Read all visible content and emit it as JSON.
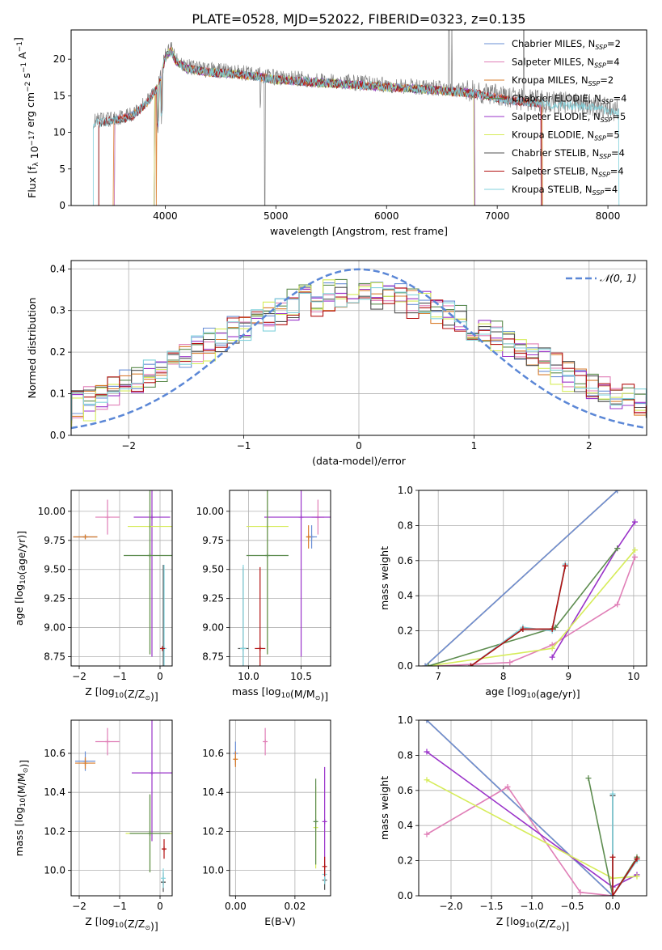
{
  "figure": {
    "title": "PLATE=0528, MJD=52022, FIBERID=0323, z=0.135"
  },
  "series_colors": {
    "Chabrier MILES": "#6a8fd6",
    "Salpeter MILES": "#e07fb7",
    "Kroupa MILES": "#d97d2c",
    "Chabrier ELODIE": "#5d8c4f",
    "Salpeter ELODIE": "#9a33c9",
    "Kroupa ELODIE": "#d6ec5a",
    "Chabrier STELIB": "#505050",
    "Salpeter STELIB": "#b31212",
    "Kroupa STELIB": "#82d2dc",
    "data": "#808080"
  },
  "chart_data": [
    {
      "id": "spectrum",
      "type": "line",
      "title": "PLATE=0528, MJD=52022, FIBERID=0323, z=0.135",
      "xlabel": "wavelength [Angstrom, rest frame]",
      "ylabel": "Flux [f_λ 10^-17 erg cm^-2 s^-1 A^-1]",
      "xlim": [
        3150,
        8350
      ],
      "ylim": [
        0,
        24
      ],
      "xticks": [
        4000,
        5000,
        6000,
        7000,
        8000
      ],
      "yticks": [
        0,
        5,
        10,
        15,
        20
      ],
      "legend_position": "top-right",
      "legend": [
        "Chabrier MILES, N_SSP=2",
        "Salpeter MILES, N_SSP=4",
        "Kroupa MILES, N_SSP=2",
        "Chabrier ELODIE, N_SSP=4",
        "Salpeter ELODIE, N_SSP=5",
        "Kroupa ELODIE, N_SSP=5",
        "Chabrier STELIB, N_SSP=4",
        "Salpeter STELIB, N_SSP=4",
        "Kroupa STELIB, N_SSP=4"
      ],
      "continuum": {
        "x": [
          3350,
          3500,
          3700,
          3850,
          3950,
          4000,
          4050,
          4100,
          4200,
          4400,
          4600,
          4800,
          5000,
          5200,
          5500,
          5800,
          6000,
          6300,
          6500,
          6800,
          7000,
          7200,
          7400,
          7600,
          7800,
          8000,
          8100
        ],
        "y": [
          11.5,
          11.8,
          12.5,
          14.5,
          17.0,
          20.5,
          21.5,
          20.0,
          19.0,
          18.5,
          18.3,
          18.0,
          17.5,
          17.3,
          17.0,
          16.7,
          16.5,
          16.2,
          16.0,
          15.6,
          15.0,
          14.5,
          14.2,
          14.0,
          13.8,
          13.2,
          13.0
        ]
      },
      "model_series": [
        {
          "name": "Chabrier MILES",
          "x_range": [
            3540,
            7400
          ],
          "dropouts": [
            3540,
            7400
          ]
        },
        {
          "name": "Salpeter MILES",
          "x_range": [
            3540,
            7400
          ],
          "dropouts": [
            3540,
            7400
          ]
        },
        {
          "name": "Kroupa MILES",
          "x_range": [
            3530,
            7410
          ],
          "dropouts": [
            3530,
            3920,
            7410
          ]
        },
        {
          "name": "Chabrier ELODIE",
          "x_range": [
            3900,
            6800
          ],
          "dropouts": [
            3900,
            6800
          ]
        },
        {
          "name": "Salpeter ELODIE",
          "x_range": [
            3900,
            6800
          ],
          "dropouts": [
            3900,
            6800
          ]
        },
        {
          "name": "Kroupa ELODIE",
          "x_range": [
            3900,
            6790
          ],
          "dropouts": [
            3900,
            6790
          ]
        },
        {
          "name": "Chabrier STELIB",
          "x_range": [
            3400,
            7400
          ],
          "dropouts": []
        },
        {
          "name": "Salpeter STELIB",
          "x_range": [
            3400,
            7400
          ],
          "dropouts": []
        },
        {
          "name": "Kroupa STELIB",
          "x_range": [
            3350,
            8100
          ],
          "dropouts": []
        }
      ]
    },
    {
      "id": "residuals",
      "type": "line",
      "xlabel": "(data-model)/error",
      "ylabel": "Normed distribution",
      "xlim": [
        -2.5,
        2.5
      ],
      "ylim": [
        0,
        0.42
      ],
      "xticks": [
        -2,
        -1,
        0,
        1,
        2
      ],
      "yticks": [
        0.0,
        0.1,
        0.2,
        0.3,
        0.4
      ],
      "legend_position": "top-right",
      "legend": [
        "𝒩(0, 1)"
      ],
      "gaussian": {
        "mean": 0,
        "sigma": 1
      },
      "step_histograms": [
        {
          "name": "Chabrier MILES",
          "bins": 50,
          "peak": 0.34,
          "width": 1.45
        },
        {
          "name": "Salpeter MILES",
          "bins": 50,
          "peak": 0.34,
          "width": 1.4
        },
        {
          "name": "Kroupa MILES",
          "bins": 50,
          "peak": 0.33,
          "width": 1.45
        },
        {
          "name": "Chabrier ELODIE",
          "bins": 50,
          "peak": 0.35,
          "width": 1.38
        },
        {
          "name": "Salpeter ELODIE",
          "bins": 50,
          "peak": 0.34,
          "width": 1.35
        },
        {
          "name": "Kroupa ELODIE",
          "bins": 50,
          "peak": 0.35,
          "width": 1.3
        },
        {
          "name": "Chabrier STELIB",
          "bins": 50,
          "peak": 0.33,
          "width": 1.45
        },
        {
          "name": "Salpeter STELIB",
          "bins": 50,
          "peak": 0.33,
          "width": 1.45
        },
        {
          "name": "Kroupa STELIB",
          "bins": 50,
          "peak": 0.33,
          "width": 1.45
        }
      ]
    },
    {
      "id": "age-vs-Z",
      "type": "scatter",
      "xlabel": "Z [log10(Z/Z☉)]",
      "ylabel": "age  [log10(age/yr)]",
      "xlim": [
        -2.2,
        0.3
      ],
      "ylim": [
        8.67,
        10.18
      ],
      "xticks": [
        -2,
        -1,
        0
      ],
      "yticks": [
        8.75,
        9.0,
        9.25,
        9.5,
        9.75,
        10.0
      ],
      "points": [
        {
          "series": "Chabrier MILES",
          "x": -1.85,
          "y": 9.78,
          "xerr": 0.3,
          "yerr": 0.0
        },
        {
          "series": "Kroupa MILES",
          "x": -1.85,
          "y": 9.78,
          "xerr": 0.3,
          "yerr": 0.0
        },
        {
          "series": "Salpeter MILES",
          "x": -1.3,
          "y": 9.95,
          "xerr": 0.3,
          "yerr": 0.15
        },
        {
          "series": "Salpeter ELODIE",
          "x": -0.2,
          "y": 9.95,
          "xerr": 0.45,
          "yerr": 1.2
        },
        {
          "series": "Kroupa ELODIE",
          "x": -0.25,
          "y": 9.87,
          "xerr": 0.55,
          "yerr": 1.1
        },
        {
          "series": "Chabrier ELODIE",
          "x": -0.25,
          "y": 9.62,
          "xerr": 0.65,
          "yerr": 0.85
        },
        {
          "series": "Chabrier STELIB",
          "x": 0.08,
          "y": 8.82,
          "xerr": 0.04,
          "yerr": 0.72
        },
        {
          "series": "Kroupa STELIB",
          "x": 0.1,
          "y": 8.82,
          "xerr": 0.02,
          "yerr": 0.72
        },
        {
          "series": "Salpeter STELIB",
          "x": 0.06,
          "y": 8.82,
          "xerr": 0.02,
          "yerr": 0.0
        }
      ]
    },
    {
      "id": "age-vs-mass",
      "type": "scatter",
      "xlabel": "mass [log10(M/M☉)]",
      "ylabel": "",
      "xlim": [
        9.82,
        10.78
      ],
      "ylim": [
        8.67,
        10.18
      ],
      "xticks": [
        10.0,
        10.5
      ],
      "yticks": [
        8.75,
        9.0,
        9.25,
        9.5,
        9.75,
        10.0
      ],
      "points": [
        {
          "series": "Chabrier MILES",
          "x": 10.6,
          "y": 9.78,
          "xerr": 0.05,
          "yerr": 0.1
        },
        {
          "series": "Kroupa MILES",
          "x": 10.57,
          "y": 9.78,
          "xerr": 0.02,
          "yerr": 0.1
        },
        {
          "series": "Salpeter MILES",
          "x": 10.66,
          "y": 9.95,
          "xerr": 0.06,
          "yerr": 0.15
        },
        {
          "series": "Salpeter ELODIE",
          "x": 10.5,
          "y": 9.95,
          "xerr": 0.35,
          "yerr": 1.2
        },
        {
          "series": "Kroupa ELODIE",
          "x": 10.18,
          "y": 9.87,
          "xerr": 0.2,
          "yerr": 1.1
        },
        {
          "series": "Chabrier ELODIE",
          "x": 10.18,
          "y": 9.62,
          "xerr": 0.2,
          "yerr": 0.85
        },
        {
          "series": "Chabrier STELIB",
          "x": 9.95,
          "y": 8.82,
          "xerr": 0.05,
          "yerr": 0.7
        },
        {
          "series": "Kroupa STELIB",
          "x": 9.95,
          "y": 8.82,
          "xerr": 0.03,
          "yerr": 0.72
        },
        {
          "series": "Salpeter STELIB",
          "x": 10.11,
          "y": 8.82,
          "xerr": 0.05,
          "yerr": 0.7
        }
      ]
    },
    {
      "id": "mass-weight-vs-age",
      "type": "line",
      "xlabel": "age  [log10(age/yr)]",
      "ylabel": "mass weight",
      "xlim": [
        6.7,
        10.2
      ],
      "ylim": [
        0,
        1
      ],
      "xticks": [
        7,
        8,
        9,
        10
      ],
      "yticks": [
        0.0,
        0.2,
        0.4,
        0.6,
        0.8,
        1.0
      ],
      "series": [
        {
          "name": "Kroupa MILES",
          "x": [
            6.8,
            9.75
          ],
          "y": [
            0.0,
            1.0
          ]
        },
        {
          "name": "Chabrier MILES",
          "x": [
            6.8,
            9.75
          ],
          "y": [
            0.0,
            1.0
          ]
        },
        {
          "name": "Salpeter MILES",
          "x": [
            7.0,
            8.1,
            8.75,
            9.75,
            10.02
          ],
          "y": [
            0.0,
            0.02,
            0.12,
            0.35,
            0.62
          ]
        },
        {
          "name": "Salpeter ELODIE",
          "x": [
            8.75,
            9.75,
            10.02
          ],
          "y": [
            0.05,
            0.67,
            0.82
          ]
        },
        {
          "name": "Kroupa ELODIE",
          "x": [
            6.85,
            8.75,
            10.02
          ],
          "y": [
            0.0,
            0.1,
            0.66
          ]
        },
        {
          "name": "Chabrier ELODIE",
          "x": [
            6.85,
            8.8,
            9.75
          ],
          "y": [
            0.0,
            0.22,
            0.67
          ]
        },
        {
          "name": "Chabrier STELIB",
          "x": [
            7.5,
            8.3,
            8.75,
            8.95
          ],
          "y": [
            0.0,
            0.21,
            0.21,
            0.57
          ]
        },
        {
          "name": "Kroupa STELIB",
          "x": [
            7.5,
            8.3,
            8.75,
            8.95
          ],
          "y": [
            0.0,
            0.22,
            0.2,
            0.58
          ]
        },
        {
          "name": "Salpeter STELIB",
          "x": [
            7.5,
            8.3,
            8.75,
            8.95
          ],
          "y": [
            0.0,
            0.21,
            0.21,
            0.57
          ]
        }
      ]
    },
    {
      "id": "mass-vs-Z",
      "type": "scatter",
      "xlabel": "Z [log10(Z/Z☉)]",
      "ylabel": "mass [log10(M/M☉)]",
      "xlim": [
        -2.2,
        0.3
      ],
      "ylim": [
        9.87,
        10.77
      ],
      "xticks": [
        -2,
        -1,
        0
      ],
      "yticks": [
        10.0,
        10.2,
        10.4,
        10.6
      ],
      "points": [
        {
          "series": "Chabrier MILES",
          "x": -1.85,
          "y": 10.56,
          "xerr": 0.25,
          "yerr": 0.05
        },
        {
          "series": "Kroupa MILES",
          "x": -1.85,
          "y": 10.55,
          "xerr": 0.25,
          "yerr": 0.03
        },
        {
          "series": "Salpeter MILES",
          "x": -1.3,
          "y": 10.66,
          "xerr": 0.3,
          "yerr": 0.07
        },
        {
          "series": "Salpeter ELODIE",
          "x": -0.2,
          "y": 10.5,
          "xerr": 0.5,
          "yerr": 0.35
        },
        {
          "series": "Kroupa ELODIE",
          "x": -0.25,
          "y": 10.19,
          "xerr": 0.6,
          "yerr": 0.2
        },
        {
          "series": "Chabrier ELODIE",
          "x": -0.25,
          "y": 10.19,
          "xerr": 0.5,
          "yerr": 0.2
        },
        {
          "series": "Chabrier STELIB",
          "x": 0.08,
          "y": 9.94,
          "xerr": 0.05,
          "yerr": 0.05
        },
        {
          "series": "Kroupa STELIB",
          "x": 0.08,
          "y": 9.96,
          "xerr": 0.03,
          "yerr": 0.05
        },
        {
          "series": "Salpeter STELIB",
          "x": 0.1,
          "y": 10.11,
          "xerr": 0.03,
          "yerr": 0.05
        }
      ]
    },
    {
      "id": "mass-vs-EBV",
      "type": "scatter",
      "xlabel": "E(B-V)",
      "ylabel": "",
      "xlim": [
        -0.002,
        0.032
      ],
      "ylim": [
        9.87,
        10.77
      ],
      "xticks": [
        0.0,
        0.02
      ],
      "yticks": [
        10.0,
        10.2,
        10.4,
        10.6
      ],
      "points": [
        {
          "series": "Chabrier MILES",
          "x": 0.0,
          "y": 10.6,
          "xerr": 0,
          "yerr": 0.06
        },
        {
          "series": "Kroupa MILES",
          "x": 0.0,
          "y": 10.57,
          "xerr": 0,
          "yerr": 0.04
        },
        {
          "series": "Salpeter MILES",
          "x": 0.01,
          "y": 10.66,
          "xerr": 0,
          "yerr": 0.07
        },
        {
          "series": "Salpeter ELODIE",
          "x": 0.03,
          "y": 10.25,
          "xerr": 0,
          "yerr": 0.28
        },
        {
          "series": "Kroupa ELODIE",
          "x": 0.027,
          "y": 10.22,
          "xerr": 0,
          "yerr": 0.21
        },
        {
          "series": "Chabrier ELODIE",
          "x": 0.027,
          "y": 10.25,
          "xerr": 0,
          "yerr": 0.22
        },
        {
          "series": "Chabrier STELIB",
          "x": 0.03,
          "y": 9.95,
          "xerr": 0,
          "yerr": 0.05
        },
        {
          "series": "Kroupa STELIB",
          "x": 0.03,
          "y": 9.98,
          "xerr": 0,
          "yerr": 0.05
        },
        {
          "series": "Salpeter STELIB",
          "x": 0.03,
          "y": 10.02,
          "xerr": 0,
          "yerr": 0.05
        }
      ]
    },
    {
      "id": "mass-weight-vs-Z",
      "type": "line",
      "xlabel": "Z [log10(Z/Z☉)]",
      "ylabel": "mass weight",
      "xlim": [
        -2.4,
        0.42
      ],
      "ylim": [
        0,
        1
      ],
      "xticks": [
        -2.0,
        -1.5,
        -1.0,
        -0.5,
        0.0
      ],
      "yticks": [
        0.0,
        0.2,
        0.4,
        0.6,
        0.8,
        1.0
      ],
      "series": [
        {
          "name": "Kroupa MILES",
          "x": [
            -2.3,
            0.0
          ],
          "y": [
            1.0,
            0.0
          ]
        },
        {
          "name": "Chabrier MILES",
          "x": [
            -2.3,
            0.0
          ],
          "y": [
            1.0,
            0.0
          ]
        },
        {
          "name": "Salpeter MILES",
          "x": [
            -2.3,
            -1.3,
            -0.4,
            0.0
          ],
          "y": [
            0.35,
            0.62,
            0.02,
            0.0
          ]
        },
        {
          "name": "Salpeter ELODIE",
          "x": [
            -2.3,
            0.0,
            0.3
          ],
          "y": [
            0.82,
            0.05,
            0.12
          ]
        },
        {
          "name": "Kroupa ELODIE",
          "x": [
            -2.3,
            0.0,
            0.3
          ],
          "y": [
            0.66,
            0.1,
            0.11
          ]
        },
        {
          "name": "Chabrier ELODIE",
          "x": [
            -0.3,
            0.0,
            0.3
          ],
          "y": [
            0.67,
            0.0,
            0.22
          ]
        },
        {
          "name": "Chabrier STELIB",
          "x": [
            0.0,
            0.0,
            0.3
          ],
          "y": [
            0.57,
            0.0,
            0.21
          ]
        },
        {
          "name": "Kroupa STELIB",
          "x": [
            0.0,
            0.0,
            0.3
          ],
          "y": [
            0.58,
            0.0,
            0.2
          ]
        },
        {
          "name": "Salpeter STELIB",
          "x": [
            0.0,
            0.0,
            0.3
          ],
          "y": [
            0.22,
            0.0,
            0.21
          ]
        }
      ]
    }
  ]
}
